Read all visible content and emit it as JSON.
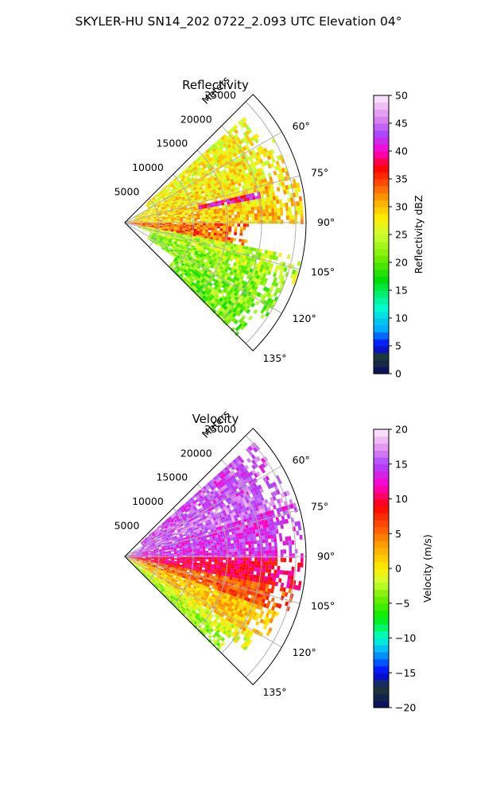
{
  "figure": {
    "suptitle": "SKYLER-HU  SN14_202  0722_2.093 UTC Elevation 04°"
  },
  "chart_data": [
    {
      "type": "heatmap",
      "subtype": "polar-sector",
      "title": "Reflectivity",
      "radial_label": "Meters",
      "radial_ticks": [
        "5000",
        "10000",
        "15000",
        "20000",
        "25000"
      ],
      "radial_tick_values": [
        5000,
        10000,
        15000,
        20000,
        25000
      ],
      "rmax": 26500,
      "theta_range": [
        45,
        135
      ],
      "theta_ticks": [
        "60°",
        "75°",
        "90°",
        "105°",
        "120°",
        "135°"
      ],
      "theta_tick_values": [
        60,
        75,
        90,
        105,
        120,
        135
      ],
      "grid": true,
      "colorbar": {
        "label": "Reflectivity dBZ",
        "range": [
          0,
          50
        ],
        "ticks": [
          "0",
          "5",
          "10",
          "15",
          "20",
          "25",
          "30",
          "35",
          "40",
          "45",
          "50"
        ],
        "tick_values": [
          0,
          5,
          10,
          15,
          20,
          25,
          30,
          35,
          40,
          45,
          50
        ],
        "colormap": "NWSRef",
        "stops": [
          {
            "v": 0,
            "color": "#0a0a64"
          },
          {
            "v": 3,
            "color": "#1e3c32"
          },
          {
            "v": 5,
            "color": "#0000ff"
          },
          {
            "v": 8,
            "color": "#00aaff"
          },
          {
            "v": 12,
            "color": "#00ffd0"
          },
          {
            "v": 17,
            "color": "#00dd00"
          },
          {
            "v": 21,
            "color": "#77ee00"
          },
          {
            "v": 25,
            "color": "#ccff33"
          },
          {
            "v": 28,
            "color": "#ffee00"
          },
          {
            "v": 31,
            "color": "#ffaa00"
          },
          {
            "v": 34,
            "color": "#ff5500"
          },
          {
            "v": 37,
            "color": "#ff0000"
          },
          {
            "v": 40,
            "color": "#ff00cc"
          },
          {
            "v": 43,
            "color": "#aa44ff"
          },
          {
            "v": 46,
            "color": "#dd88ee"
          },
          {
            "v": 50,
            "color": "#ffeeff"
          }
        ]
      },
      "field": {
        "description_values": "mostly 25-30 dBZ, 32-38 dBZ near radar (bearing ~90-100), 20-24 dBZ toward 105-135 deg",
        "sectors": [
          {
            "theta": [
              48,
              60
            ],
            "r": [
              4000,
              23000
            ],
            "dbz": 27
          },
          {
            "theta": [
              60,
              75
            ],
            "r": [
              1500,
              25000
            ],
            "dbz": 28
          },
          {
            "theta": [
              75,
              90
            ],
            "r": [
              500,
              26000
            ],
            "dbz": 29
          },
          {
            "theta": [
              90,
              100
            ],
            "r": [
              500,
              18000
            ],
            "dbz": 33
          },
          {
            "theta": [
              100,
              110
            ],
            "r": [
              2000,
              26000
            ],
            "dbz": 24
          },
          {
            "theta": [
              110,
              125
            ],
            "r": [
              4000,
              25000
            ],
            "dbz": 22
          },
          {
            "theta": [
              125,
              135
            ],
            "r": [
              9000,
              23000
            ],
            "dbz": 21
          }
        ],
        "features": [
          {
            "name": "line-echo",
            "theta": [
              76,
              80
            ],
            "r": [
              11000,
              20000
            ],
            "dbz": 40
          }
        ]
      }
    },
    {
      "type": "heatmap",
      "subtype": "polar-sector",
      "title": "Velocity",
      "radial_label": "Meters",
      "radial_ticks": [
        "5000",
        "10000",
        "15000",
        "20000",
        "25000"
      ],
      "radial_tick_values": [
        5000,
        10000,
        15000,
        20000,
        25000
      ],
      "rmax": 26500,
      "theta_range": [
        45,
        135
      ],
      "theta_ticks": [
        "60°",
        "75°",
        "90°",
        "105°",
        "120°",
        "135°"
      ],
      "theta_tick_values": [
        60,
        75,
        90,
        105,
        120,
        135
      ],
      "grid": true,
      "colorbar": {
        "label": "Velocity (m/s)",
        "range": [
          -20,
          20
        ],
        "ticks": [
          "−20",
          "−15",
          "−10",
          "−5",
          "0",
          "5",
          "10",
          "15",
          "20"
        ],
        "tick_values": [
          -20,
          -15,
          -10,
          -5,
          0,
          5,
          10,
          15,
          20
        ],
        "colormap": "NWSVel",
        "stops": [
          {
            "v": -20,
            "color": "#0a0a64"
          },
          {
            "v": -17,
            "color": "#1e3c32"
          },
          {
            "v": -15,
            "color": "#0000ff"
          },
          {
            "v": -12,
            "color": "#00aaff"
          },
          {
            "v": -10,
            "color": "#00ffd0"
          },
          {
            "v": -7,
            "color": "#00ee00"
          },
          {
            "v": -4,
            "color": "#77ee00"
          },
          {
            "v": -2,
            "color": "#ccff33"
          },
          {
            "v": 0,
            "color": "#ffee00"
          },
          {
            "v": 3,
            "color": "#ffaa00"
          },
          {
            "v": 6,
            "color": "#ff5500"
          },
          {
            "v": 9,
            "color": "#ff0000"
          },
          {
            "v": 12,
            "color": "#ff00cc"
          },
          {
            "v": 15,
            "color": "#aa44ff"
          },
          {
            "v": 17,
            "color": "#dd88ee"
          },
          {
            "v": 20,
            "color": "#ffeeff"
          }
        ]
      },
      "field": {
        "description_values": "15-17 m/s at 55-75 deg, ~13 m/s near 80-90 deg, 8-11 m/s at 90-105 deg, 1-5 m/s at 105-125 deg, -3 to 0 m/s at 125-135 deg",
        "sectors": [
          {
            "theta": [
              48,
              62
            ],
            "r": [
              3000,
              25000
            ],
            "vel": 15
          },
          {
            "theta": [
              62,
              72
            ],
            "r": [
              1000,
              25500
            ],
            "vel": 16
          },
          {
            "theta": [
              72,
              90
            ],
            "r": [
              500,
              26000
            ],
            "vel": 14
          },
          {
            "theta": [
              90,
              100
            ],
            "r": [
              500,
              26000
            ],
            "vel": 10
          },
          {
            "theta": [
              100,
              110
            ],
            "r": [
              500,
              25000
            ],
            "vel": 6
          },
          {
            "theta": [
              110,
              122
            ],
            "r": [
              500,
              24000
            ],
            "vel": 2
          },
          {
            "theta": [
              122,
              128
            ],
            "r": [
              500,
              22000
            ],
            "vel": -1
          },
          {
            "theta": [
              128,
              135
            ],
            "r": [
              500,
              19000
            ],
            "vel": -3
          }
        ]
      }
    }
  ]
}
